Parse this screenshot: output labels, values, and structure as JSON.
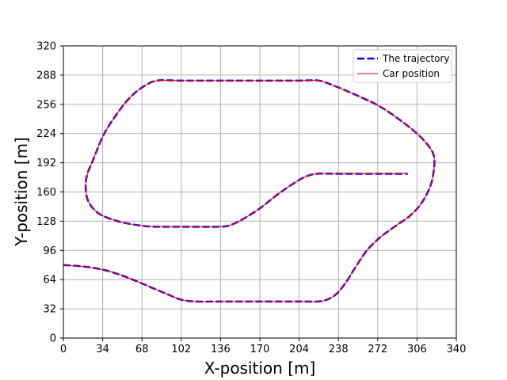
{
  "chart_data": {
    "type": "line",
    "xlabel": "X-position [m]",
    "ylabel": "Y-position [m]",
    "xlim": [
      0,
      340
    ],
    "ylim": [
      0,
      320
    ],
    "xticks": [
      0,
      34,
      68,
      102,
      136,
      170,
      204,
      238,
      272,
      306,
      340
    ],
    "yticks": [
      0,
      32,
      64,
      96,
      128,
      160,
      192,
      224,
      256,
      288,
      320
    ],
    "grid": true,
    "legend_position": "top-right",
    "series": [
      {
        "name": "The trajectory",
        "color": "#0000ff",
        "style": "dashed",
        "points": [
          [
            0,
            80
          ],
          [
            20,
            78
          ],
          [
            40,
            73
          ],
          [
            60,
            64
          ],
          [
            75,
            56
          ],
          [
            90,
            48
          ],
          [
            102,
            42
          ],
          [
            115,
            40
          ],
          [
            136,
            40
          ],
          [
            170,
            40
          ],
          [
            204,
            40
          ],
          [
            220,
            40
          ],
          [
            228,
            42
          ],
          [
            236,
            48
          ],
          [
            244,
            60
          ],
          [
            252,
            76
          ],
          [
            262,
            95
          ],
          [
            272,
            108
          ],
          [
            280,
            116
          ],
          [
            290,
            125
          ],
          [
            300,
            134
          ],
          [
            310,
            148
          ],
          [
            318,
            168
          ],
          [
            321,
            190
          ],
          [
            320,
            202
          ],
          [
            315,
            212
          ],
          [
            306,
            224
          ],
          [
            290,
            240
          ],
          [
            272,
            255
          ],
          [
            250,
            268
          ],
          [
            235,
            276
          ],
          [
            221,
            282
          ],
          [
            204,
            282
          ],
          [
            170,
            282
          ],
          [
            136,
            282
          ],
          [
            102,
            282
          ],
          [
            81,
            282
          ],
          [
            70,
            276
          ],
          [
            58,
            264
          ],
          [
            46,
            245
          ],
          [
            35,
            223
          ],
          [
            26,
            196
          ],
          [
            20,
            176
          ],
          [
            20,
            156
          ],
          [
            25,
            143
          ],
          [
            34,
            134
          ],
          [
            50,
            127
          ],
          [
            68,
            123
          ],
          [
            80,
            122
          ],
          [
            102,
            122
          ],
          [
            136,
            122
          ],
          [
            145,
            124
          ],
          [
            155,
            130
          ],
          [
            170,
            142
          ],
          [
            185,
            157
          ],
          [
            200,
            170
          ],
          [
            210,
            177
          ],
          [
            220,
            180
          ],
          [
            240,
            180
          ],
          [
            272,
            180
          ],
          [
            298,
            180
          ]
        ]
      },
      {
        "name": "Car position",
        "color": "#ff0000",
        "style": "solid",
        "points": [
          [
            0,
            80
          ],
          [
            20,
            78
          ],
          [
            40,
            73
          ],
          [
            60,
            64
          ],
          [
            75,
            56
          ],
          [
            90,
            48
          ],
          [
            102,
            42
          ],
          [
            115,
            40
          ],
          [
            136,
            40
          ],
          [
            170,
            40
          ],
          [
            204,
            40
          ],
          [
            220,
            40
          ],
          [
            228,
            42
          ],
          [
            236,
            48
          ],
          [
            244,
            60
          ],
          [
            252,
            76
          ],
          [
            262,
            95
          ],
          [
            272,
            108
          ],
          [
            280,
            116
          ],
          [
            290,
            125
          ],
          [
            300,
            134
          ],
          [
            310,
            148
          ],
          [
            318,
            168
          ],
          [
            321,
            190
          ],
          [
            320,
            202
          ],
          [
            315,
            212
          ],
          [
            306,
            224
          ],
          [
            290,
            240
          ],
          [
            272,
            255
          ],
          [
            250,
            268
          ],
          [
            235,
            276
          ],
          [
            221,
            282
          ],
          [
            204,
            282
          ],
          [
            170,
            282
          ],
          [
            136,
            282
          ],
          [
            102,
            282
          ],
          [
            81,
            282
          ],
          [
            70,
            276
          ],
          [
            58,
            264
          ],
          [
            46,
            245
          ],
          [
            35,
            223
          ],
          [
            26,
            196
          ],
          [
            20,
            176
          ],
          [
            20,
            156
          ],
          [
            25,
            143
          ],
          [
            34,
            134
          ],
          [
            50,
            127
          ],
          [
            68,
            123
          ],
          [
            80,
            122
          ],
          [
            102,
            122
          ],
          [
            136,
            122
          ],
          [
            145,
            124
          ],
          [
            155,
            130
          ],
          [
            170,
            142
          ],
          [
            185,
            157
          ],
          [
            200,
            170
          ],
          [
            210,
            177
          ],
          [
            220,
            180
          ],
          [
            240,
            180
          ],
          [
            272,
            180
          ],
          [
            298,
            180
          ]
        ]
      }
    ]
  }
}
